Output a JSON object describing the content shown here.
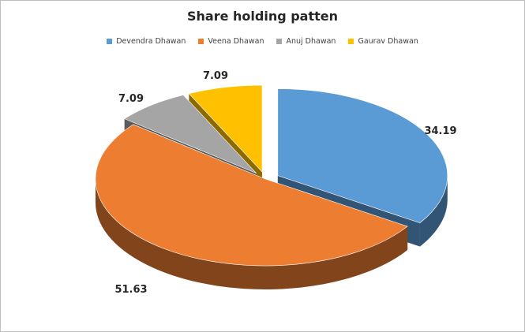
{
  "chart_data": {
    "type": "pie",
    "title": "Share holding patten",
    "legend_position": "top",
    "exploded": true,
    "three_d": true,
    "categories": [
      "Devendra Dhawan",
      "Veena Dhawan",
      "Anuj Dhawan",
      "Gaurav Dhawan"
    ],
    "values": [
      34.19,
      51.63,
      7.09,
      7.09
    ],
    "labels": [
      "34.19",
      "51.63",
      "7.09",
      "7.09"
    ],
    "colors": [
      "#5b9bd5",
      "#ed7d31",
      "#a5a5a5",
      "#ffc000"
    ]
  }
}
